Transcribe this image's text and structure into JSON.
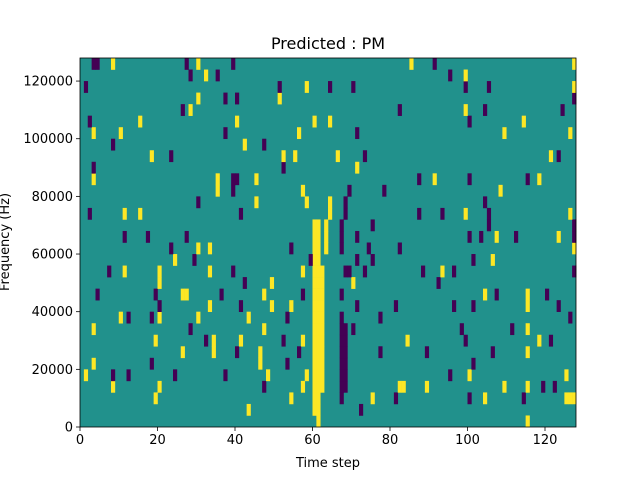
{
  "chart_data": {
    "type": "heatmap",
    "title": "Predicted : PM",
    "xlabel": "Time step",
    "ylabel": "Frequency (Hz)",
    "xlim": [
      0,
      128
    ],
    "ylim": [
      0,
      128000
    ],
    "n_cols": 128,
    "n_rows": 32,
    "row_height_hz": 4000,
    "xticks": [
      0,
      20,
      40,
      60,
      80,
      100,
      120
    ],
    "yticks": [
      0,
      20000,
      40000,
      60000,
      80000,
      100000,
      120000
    ],
    "background_value": 0.5,
    "colors": {
      "0": "#440154",
      "0.5": "#21918c",
      "1": "#fde725"
    },
    "runs": [
      [
        60,
        1,
        17,
        1
      ],
      [
        61,
        0,
        17,
        1
      ],
      [
        62,
        3,
        13,
        1
      ],
      [
        63,
        15,
        17,
        1
      ],
      [
        67,
        2,
        9,
        0
      ],
      [
        68,
        3,
        8,
        0
      ]
    ],
    "cells": [
      [
        43,
        1,
        1
      ],
      [
        72,
        1,
        0
      ],
      [
        115,
        0,
        1
      ],
      [
        19,
        2,
        1
      ],
      [
        54,
        2,
        1
      ],
      [
        75,
        2,
        1
      ],
      [
        81,
        2,
        0
      ],
      [
        100,
        2,
        0
      ],
      [
        104,
        2,
        1
      ],
      [
        114,
        2,
        0
      ],
      [
        125,
        2,
        1
      ],
      [
        126,
        2,
        1
      ],
      [
        127,
        2,
        1
      ],
      [
        8,
        3,
        1
      ],
      [
        20,
        3,
        1
      ],
      [
        47,
        3,
        0
      ],
      [
        57,
        3,
        1
      ],
      [
        83,
        3,
        1
      ],
      [
        82,
        3,
        1
      ],
      [
        89,
        3,
        1
      ],
      [
        109,
        3,
        1
      ],
      [
        115,
        3,
        1
      ],
      [
        119,
        3,
        0
      ],
      [
        122,
        3,
        0
      ],
      [
        1,
        4,
        1
      ],
      [
        8,
        4,
        0
      ],
      [
        12,
        4,
        0
      ],
      [
        24,
        4,
        0
      ],
      [
        37,
        4,
        0
      ],
      [
        48,
        4,
        1
      ],
      [
        58,
        4,
        1
      ],
      [
        95,
        4,
        0
      ],
      [
        100,
        4,
        1
      ],
      [
        125,
        4,
        1
      ],
      [
        3,
        5,
        1
      ],
      [
        18,
        5,
        0
      ],
      [
        46,
        5,
        1
      ],
      [
        53,
        5,
        0
      ],
      [
        101,
        5,
        0
      ],
      [
        26,
        6,
        1
      ],
      [
        34,
        6,
        1
      ],
      [
        40,
        6,
        0
      ],
      [
        46,
        6,
        1
      ],
      [
        56,
        6,
        0
      ],
      [
        77,
        6,
        0
      ],
      [
        89,
        6,
        0
      ],
      [
        106,
        6,
        0
      ],
      [
        115,
        6,
        1
      ],
      [
        19,
        7,
        1
      ],
      [
        32,
        7,
        0
      ],
      [
        34,
        7,
        1
      ],
      [
        41,
        7,
        1
      ],
      [
        52,
        7,
        0
      ],
      [
        57,
        7,
        1
      ],
      [
        84,
        7,
        1
      ],
      [
        99,
        7,
        0
      ],
      [
        118,
        7,
        1
      ],
      [
        121,
        7,
        0
      ],
      [
        3,
        8,
        1
      ],
      [
        28,
        8,
        0
      ],
      [
        47,
        8,
        1
      ],
      [
        70,
        8,
        0
      ],
      [
        98,
        8,
        0
      ],
      [
        111,
        8,
        0
      ],
      [
        115,
        8,
        1
      ],
      [
        10,
        9,
        1
      ],
      [
        12,
        9,
        0
      ],
      [
        18,
        9,
        0
      ],
      [
        20,
        9,
        1
      ],
      [
        30,
        9,
        1
      ],
      [
        43,
        9,
        1
      ],
      [
        53,
        9,
        0
      ],
      [
        77,
        9,
        0
      ],
      [
        126,
        9,
        0
      ],
      [
        20,
        10,
        0
      ],
      [
        33,
        10,
        1
      ],
      [
        41,
        10,
        0
      ],
      [
        49,
        10,
        1
      ],
      [
        54,
        10,
        1
      ],
      [
        71,
        10,
        0
      ],
      [
        81,
        10,
        0
      ],
      [
        96,
        10,
        0
      ],
      [
        101,
        10,
        0
      ],
      [
        115,
        10,
        1
      ],
      [
        123,
        10,
        0
      ],
      [
        4,
        11,
        0
      ],
      [
        19,
        11,
        0
      ],
      [
        26,
        11,
        1
      ],
      [
        27,
        11,
        1
      ],
      [
        36,
        11,
        0
      ],
      [
        47,
        11,
        1
      ],
      [
        57,
        11,
        0
      ],
      [
        67,
        11,
        0
      ],
      [
        104,
        11,
        1
      ],
      [
        107,
        11,
        0
      ],
      [
        115,
        11,
        1
      ],
      [
        120,
        11,
        0
      ],
      [
        20,
        12,
        1
      ],
      [
        42,
        12,
        0
      ],
      [
        49,
        12,
        1
      ],
      [
        70,
        12,
        1
      ],
      [
        92,
        12,
        0
      ],
      [
        7,
        13,
        0
      ],
      [
        11,
        13,
        1
      ],
      [
        20,
        13,
        1
      ],
      [
        33,
        13,
        1
      ],
      [
        39,
        13,
        0
      ],
      [
        57,
        13,
        1
      ],
      [
        68,
        13,
        0
      ],
      [
        69,
        13,
        0
      ],
      [
        73,
        13,
        0
      ],
      [
        88,
        13,
        0
      ],
      [
        93,
        13,
        1
      ],
      [
        96,
        13,
        0
      ],
      [
        127,
        13,
        0
      ],
      [
        24,
        14,
        1
      ],
      [
        29,
        14,
        0
      ],
      [
        59,
        14,
        0
      ],
      [
        71,
        14,
        0
      ],
      [
        75,
        14,
        0
      ],
      [
        101,
        14,
        0
      ],
      [
        106,
        14,
        1
      ],
      [
        23,
        15,
        0
      ],
      [
        30,
        15,
        1
      ],
      [
        33,
        15,
        1
      ],
      [
        54,
        15,
        0
      ],
      [
        67,
        15,
        0
      ],
      [
        74,
        15,
        0
      ],
      [
        82,
        15,
        0
      ],
      [
        127,
        15,
        1
      ],
      [
        11,
        16,
        0
      ],
      [
        17,
        16,
        0
      ],
      [
        27,
        16,
        0
      ],
      [
        67,
        16,
        0
      ],
      [
        71,
        16,
        0
      ],
      [
        100,
        16,
        0
      ],
      [
        103,
        16,
        0
      ],
      [
        107,
        16,
        1
      ],
      [
        112,
        16,
        0
      ],
      [
        123,
        16,
        1
      ],
      [
        127,
        16,
        0
      ],
      [
        67,
        17,
        0
      ],
      [
        75,
        17,
        0
      ],
      [
        105,
        17,
        0
      ],
      [
        127,
        17,
        0
      ],
      [
        2,
        18,
        0
      ],
      [
        11,
        18,
        1
      ],
      [
        15,
        18,
        1
      ],
      [
        41,
        18,
        0
      ],
      [
        64,
        18,
        1
      ],
      [
        68,
        18,
        0
      ],
      [
        87,
        18,
        0
      ],
      [
        93,
        18,
        0
      ],
      [
        99,
        18,
        1
      ],
      [
        105,
        18,
        0
      ],
      [
        126,
        18,
        1
      ],
      [
        30,
        19,
        0
      ],
      [
        45,
        19,
        1
      ],
      [
        58,
        19,
        1
      ],
      [
        64,
        19,
        1
      ],
      [
        68,
        19,
        0
      ],
      [
        104,
        19,
        0
      ],
      [
        35,
        20,
        1
      ],
      [
        39,
        20,
        0
      ],
      [
        57,
        20,
        1
      ],
      [
        69,
        20,
        0
      ],
      [
        78,
        20,
        0
      ],
      [
        108,
        20,
        1
      ],
      [
        3,
        21,
        1
      ],
      [
        35,
        21,
        1
      ],
      [
        39,
        21,
        0
      ],
      [
        40,
        21,
        0
      ],
      [
        45,
        21,
        1
      ],
      [
        87,
        21,
        0
      ],
      [
        91,
        21,
        1
      ],
      [
        100,
        21,
        0
      ],
      [
        115,
        21,
        0
      ],
      [
        118,
        21,
        1
      ],
      [
        3,
        22,
        0
      ],
      [
        52,
        22,
        0
      ],
      [
        71,
        22,
        1
      ],
      [
        18,
        23,
        1
      ],
      [
        23,
        23,
        0
      ],
      [
        52,
        23,
        1
      ],
      [
        55,
        23,
        1
      ],
      [
        66,
        23,
        1
      ],
      [
        73,
        23,
        0
      ],
      [
        121,
        23,
        1
      ],
      [
        123,
        23,
        0
      ],
      [
        8,
        24,
        0
      ],
      [
        42,
        24,
        1
      ],
      [
        47,
        24,
        0
      ],
      [
        3,
        25,
        1
      ],
      [
        10,
        25,
        1
      ],
      [
        37,
        25,
        0
      ],
      [
        56,
        25,
        1
      ],
      [
        71,
        25,
        0
      ],
      [
        109,
        25,
        1
      ],
      [
        126,
        25,
        1
      ],
      [
        2,
        26,
        0
      ],
      [
        15,
        26,
        1
      ],
      [
        40,
        26,
        1
      ],
      [
        60,
        26,
        1
      ],
      [
        64,
        26,
        1
      ],
      [
        100,
        26,
        0
      ],
      [
        114,
        26,
        1
      ],
      [
        26,
        27,
        0
      ],
      [
        28,
        27,
        1
      ],
      [
        82,
        27,
        0
      ],
      [
        99,
        27,
        1
      ],
      [
        104,
        27,
        0
      ],
      [
        124,
        27,
        0
      ],
      [
        30,
        28,
        1
      ],
      [
        37,
        28,
        0
      ],
      [
        40,
        28,
        0
      ],
      [
        51,
        28,
        1
      ],
      [
        127,
        28,
        0
      ],
      [
        1,
        29,
        0
      ],
      [
        51,
        29,
        0
      ],
      [
        58,
        29,
        1
      ],
      [
        64,
        29,
        0
      ],
      [
        70,
        29,
        0
      ],
      [
        99,
        29,
        0
      ],
      [
        105,
        29,
        0
      ],
      [
        127,
        29,
        1
      ],
      [
        28,
        30,
        0
      ],
      [
        32,
        30,
        1
      ],
      [
        35,
        30,
        0
      ],
      [
        95,
        30,
        0
      ],
      [
        99,
        30,
        1
      ],
      [
        3,
        31,
        0
      ],
      [
        4,
        31,
        0
      ],
      [
        8,
        31,
        1
      ],
      [
        27,
        31,
        0
      ],
      [
        30,
        31,
        1
      ],
      [
        39,
        31,
        0
      ],
      [
        85,
        31,
        1
      ],
      [
        91,
        31,
        0
      ],
      [
        127,
        31,
        1
      ]
    ]
  }
}
